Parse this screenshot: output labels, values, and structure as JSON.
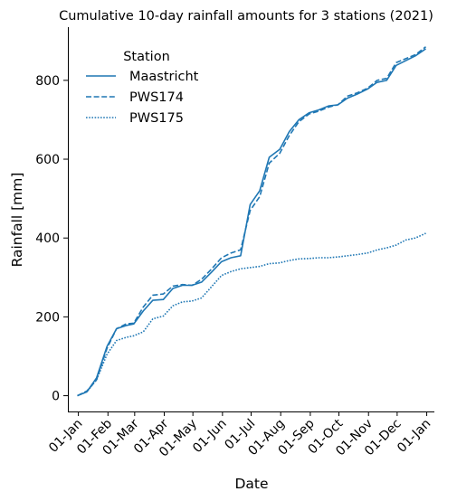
{
  "chart_data": {
    "type": "line",
    "title": "Cumulative 10-day rainfall amounts for 3 stations (2021)",
    "xlabel": "Date",
    "ylabel": "Rainfall [mm]",
    "xlim": [
      "2020-12-21",
      "2022-01-09"
    ],
    "ylim": [
      -40,
      935
    ],
    "grid": false,
    "legend": {
      "title": "Station",
      "placement": "top-left",
      "entries": [
        {
          "name": "Maastricht",
          "style": "solid"
        },
        {
          "name": "PWS174",
          "style": "dashed"
        },
        {
          "name": "PWS175",
          "style": "dotted"
        }
      ]
    },
    "color": "#1f77b4",
    "x_ticks": [
      {
        "date": "2021-01-01",
        "label": "01-Jan"
      },
      {
        "date": "2021-02-01",
        "label": "01-Feb"
      },
      {
        "date": "2021-03-01",
        "label": "01-Mar"
      },
      {
        "date": "2021-04-01",
        "label": "01-Apr"
      },
      {
        "date": "2021-05-01",
        "label": "01-May"
      },
      {
        "date": "2021-06-01",
        "label": "01-Jun"
      },
      {
        "date": "2021-07-01",
        "label": "01-Jul"
      },
      {
        "date": "2021-08-01",
        "label": "01-Aug"
      },
      {
        "date": "2021-09-01",
        "label": "01-Sep"
      },
      {
        "date": "2021-10-01",
        "label": "01-Oct"
      },
      {
        "date": "2021-11-01",
        "label": "01-Nov"
      },
      {
        "date": "2021-12-01",
        "label": "01-Dec"
      },
      {
        "date": "2022-01-01",
        "label": "01-Jan"
      }
    ],
    "y_ticks": [
      0,
      200,
      400,
      600,
      800
    ],
    "x": [
      "2020-12-31",
      "2021-01-10",
      "2021-01-20",
      "2021-01-31",
      "2021-02-10",
      "2021-02-20",
      "2021-02-28",
      "2021-03-10",
      "2021-03-20",
      "2021-03-31",
      "2021-04-10",
      "2021-04-20",
      "2021-04-30",
      "2021-05-10",
      "2021-05-20",
      "2021-05-31",
      "2021-06-10",
      "2021-06-20",
      "2021-06-30",
      "2021-07-10",
      "2021-07-20",
      "2021-07-31",
      "2021-08-10",
      "2021-08-20",
      "2021-08-31",
      "2021-09-10",
      "2021-09-20",
      "2021-09-30",
      "2021-10-10",
      "2021-10-20",
      "2021-10-31",
      "2021-11-10",
      "2021-11-20",
      "2021-11-30",
      "2021-12-10",
      "2021-12-20",
      "2021-12-31"
    ],
    "series": [
      {
        "name": "Maastricht",
        "style": "solid",
        "values": [
          0,
          10,
          45,
          125,
          170,
          178,
          182,
          215,
          242,
          244,
          272,
          280,
          280,
          288,
          312,
          340,
          350,
          355,
          485,
          520,
          605,
          625,
          670,
          700,
          718,
          725,
          735,
          738,
          755,
          765,
          778,
          795,
          800,
          838,
          850,
          862,
          880
        ]
      },
      {
        "name": "PWS174",
        "style": "dashed",
        "values": [
          0,
          12,
          40,
          120,
          170,
          182,
          184,
          225,
          255,
          258,
          278,
          282,
          280,
          295,
          320,
          350,
          362,
          370,
          470,
          505,
          590,
          615,
          660,
          695,
          715,
          722,
          732,
          738,
          760,
          768,
          780,
          800,
          805,
          845,
          855,
          865,
          885
        ]
      },
      {
        "name": "PWS175",
        "style": "dotted",
        "values": [
          0,
          10,
          40,
          105,
          140,
          148,
          152,
          162,
          195,
          202,
          228,
          238,
          240,
          248,
          275,
          305,
          315,
          322,
          325,
          328,
          335,
          337,
          343,
          347,
          348,
          350,
          350,
          352,
          355,
          358,
          362,
          370,
          375,
          382,
          395,
          400,
          412
        ]
      }
    ]
  }
}
